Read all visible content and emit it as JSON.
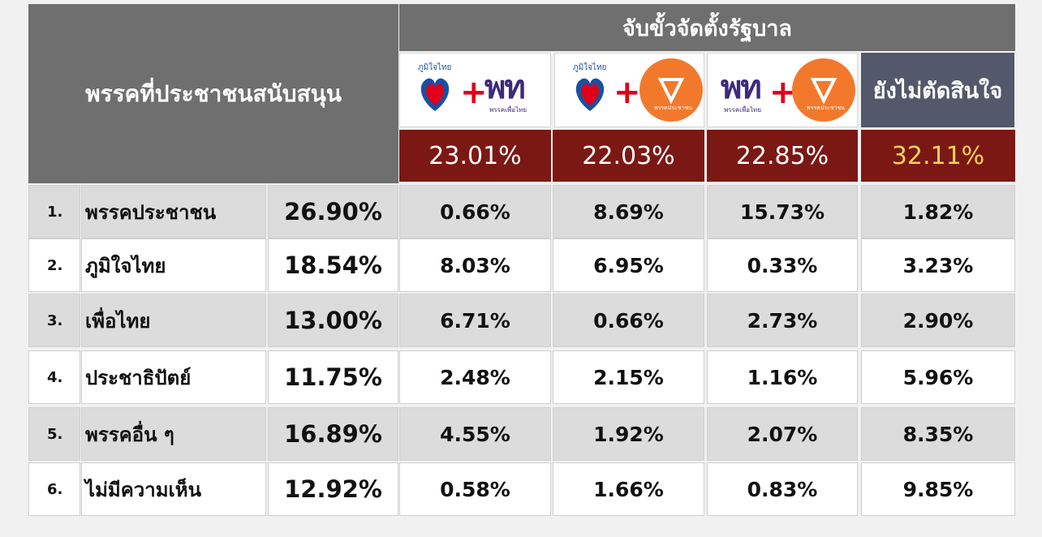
{
  "chart_data": {
    "type": "table",
    "title": "จับขั้วจัดตั้งรัฐบาล",
    "row_header": "พรรคที่ประชาชนสนับสนุน",
    "columns": [
      {
        "logos": [
          "ภูมิใจไทย",
          "พท",
          "พรรคเพื่อไทย"
        ],
        "total": "23.01%"
      },
      {
        "logos": [
          "ภูมิใจไทย",
          "พรรคประชาชน"
        ],
        "total": "22.03%"
      },
      {
        "logos": [
          "พท",
          "พรรคเพื่อไทย",
          "พรรคประชาชน"
        ],
        "total": "22.85%"
      },
      {
        "label": "ยังไม่ตัดสินใจ",
        "total": "32.11%"
      }
    ],
    "rows": [
      {
        "num": "1.",
        "party": "พรรคประชาชน",
        "support": "26.90%",
        "values": [
          "0.66%",
          "8.69%",
          "15.73%",
          "1.82%"
        ]
      },
      {
        "num": "2.",
        "party": "ภูมิใจไทย",
        "support": "18.54%",
        "values": [
          "8.03%",
          "6.95%",
          "0.33%",
          "3.23%"
        ]
      },
      {
        "num": "3.",
        "party": "เพื่อไทย",
        "support": "13.00%",
        "values": [
          "6.71%",
          "0.66%",
          "2.73%",
          "2.90%"
        ]
      },
      {
        "num": "4.",
        "party": "ประชาธิปัตย์",
        "support": "11.75%",
        "values": [
          "2.48%",
          "2.15%",
          "1.16%",
          "5.96%"
        ]
      },
      {
        "num": "5.",
        "party": "พรรคอื่น ๆ",
        "support": "16.89%",
        "values": [
          "4.55%",
          "1.92%",
          "2.07%",
          "8.35%"
        ]
      },
      {
        "num": "6.",
        "party": "ไม่มีความเห็น",
        "support": "12.92%",
        "values": [
          "0.58%",
          "1.66%",
          "0.83%",
          "9.85%"
        ]
      }
    ],
    "colors": {
      "header": "#6f6f6f",
      "total_bg": "#7c1813",
      "highlight_text": "#ffd45a",
      "undecided_bg": "#53596a",
      "orange_logo": "#f2792c"
    }
  }
}
